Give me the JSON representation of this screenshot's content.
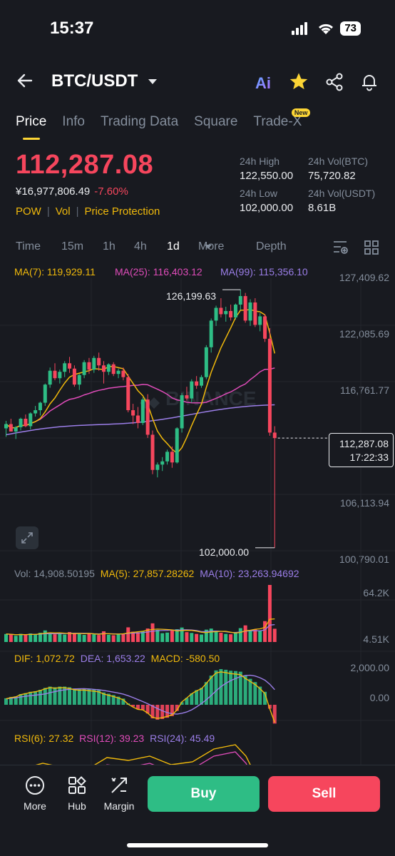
{
  "status_bar": {
    "time": "15:37",
    "battery": "73"
  },
  "header": {
    "pair": "BTC/USDT"
  },
  "tabs": [
    {
      "label": "Price",
      "active": true
    },
    {
      "label": "Info"
    },
    {
      "label": "Trading Data"
    },
    {
      "label": "Square"
    },
    {
      "label": "Trade-X",
      "badge": "New"
    }
  ],
  "price": {
    "last": "112,287.08",
    "fiat": "¥16,977,806.49",
    "change": "-7.60%",
    "tags": [
      "POW",
      "Vol",
      "Price Protection"
    ]
  },
  "stats": {
    "high_label": "24h High",
    "high": "122,550.00",
    "vol_btc_label": "24h Vol(BTC)",
    "vol_btc": "75,720.82",
    "low_label": "24h Low",
    "low": "102,000.00",
    "vol_usdt_label": "24h Vol(USDT)",
    "vol_usdt": "8.61B"
  },
  "intervals": [
    "Time",
    "15m",
    "1h",
    "4h",
    "1d",
    "More",
    "Depth"
  ],
  "ma_legend": {
    "ma7": "MA(7): 119,929.11",
    "ma25": "MA(25): 116,403.12",
    "ma99": "MA(99): 115,356.10"
  },
  "price_axis": [
    "127,409.62",
    "122,085.69",
    "116,761.77",
    "106,113.94",
    "100,790.01"
  ],
  "annotations": {
    "high": "126,199.63",
    "low": "102,000.00",
    "current_price": "112,287.08",
    "countdown": "17:22:33"
  },
  "watermark": "BINANCE",
  "vol_legend": {
    "vol": "Vol: 14,908.50195",
    "ma5": "MA(5): 27,857.28262",
    "ma10": "MA(10): 23,263.94692"
  },
  "vol_axis": [
    "64.2K",
    "4.51K"
  ],
  "macd_legend": {
    "dif": "DIF: 1,072.72",
    "dea": "DEA: 1,653.22",
    "macd": "MACD: -580.50"
  },
  "macd_axis": [
    "2,000.00",
    "0.00"
  ],
  "rsi_legend": {
    "rsi6": "RSI(6): 27.32",
    "rsi12": "RSI(12): 39.23",
    "rsi24": "RSI(24): 45.49"
  },
  "bottom_nav": {
    "more": "More",
    "hub": "Hub",
    "margin": "Margin",
    "buy": "Buy",
    "sell": "Sell"
  },
  "colors": {
    "up": "#2ebd85",
    "down": "#f6465d",
    "ma7": "#f0b90b",
    "ma25": "#e04cba",
    "ma99": "#9b7ee8",
    "accent": "#fcd535"
  },
  "chart_data": {
    "type": "candlestick",
    "candles": [
      [
        113200,
        113900,
        112400,
        113600
      ],
      [
        113600,
        114100,
        112900,
        112900
      ],
      [
        112900,
        113400,
        112200,
        113300
      ],
      [
        113300,
        114200,
        113000,
        114100
      ],
      [
        114100,
        114500,
        113300,
        113400
      ],
      [
        113400,
        114700,
        113100,
        114600
      ],
      [
        114600,
        115300,
        114300,
        114900
      ],
      [
        114900,
        115700,
        114400,
        115600
      ],
      [
        115600,
        117400,
        115300,
        117300
      ],
      [
        117300,
        118900,
        117000,
        118600
      ],
      [
        118600,
        119300,
        117700,
        117900
      ],
      [
        117900,
        118700,
        117400,
        118500
      ],
      [
        118500,
        119500,
        118000,
        119300
      ],
      [
        119300,
        119900,
        118400,
        118800
      ],
      [
        118800,
        119100,
        117100,
        117300
      ],
      [
        117300,
        118300,
        116800,
        118200
      ],
      [
        118200,
        119600,
        117900,
        119400
      ],
      [
        119400,
        119800,
        118300,
        118700
      ],
      [
        118700,
        120000,
        118400,
        119800
      ],
      [
        119800,
        120300,
        118600,
        119100
      ],
      [
        119100,
        119500,
        117400,
        118500
      ],
      [
        118500,
        119300,
        118200,
        119200
      ],
      [
        119200,
        119400,
        118100,
        118300
      ],
      [
        118300,
        118800,
        117900,
        118600
      ],
      [
        118600,
        118900,
        117700,
        118000
      ],
      [
        118000,
        118300,
        114700,
        114900
      ],
      [
        114900,
        115500,
        113600,
        114400
      ],
      [
        114400,
        115200,
        113200,
        113700
      ],
      [
        113700,
        116100,
        113500,
        115900
      ],
      [
        115900,
        116400,
        112300,
        112600
      ],
      [
        112600,
        113000,
        108900,
        109300
      ],
      [
        109300,
        110000,
        108600,
        109800
      ],
      [
        109800,
        110500,
        109200,
        110100
      ],
      [
        110100,
        111200,
        109800,
        111000
      ],
      [
        111000,
        111500,
        109500,
        110000
      ],
      [
        110000,
        113300,
        109900,
        113200
      ],
      [
        113200,
        116500,
        112800,
        116300
      ],
      [
        116300,
        117100,
        115800,
        116000
      ],
      [
        116000,
        117800,
        115600,
        117600
      ],
      [
        117600,
        118100,
        116900,
        117200
      ],
      [
        117200,
        118200,
        117000,
        118000
      ],
      [
        118000,
        121000,
        117800,
        120800
      ],
      [
        120800,
        123500,
        120300,
        123300
      ],
      [
        123300,
        124700,
        122800,
        124500
      ],
      [
        124500,
        125400,
        123600,
        123900
      ],
      [
        123900,
        124600,
        123200,
        124200
      ],
      [
        124200,
        124800,
        123300,
        123600
      ],
      [
        123600,
        124900,
        123400,
        124800
      ],
      [
        124800,
        126199.63,
        124300,
        125600
      ],
      [
        125600,
        125900,
        123100,
        123300
      ],
      [
        123300,
        125300,
        122800,
        125000
      ],
      [
        125000,
        125400,
        122700,
        122900
      ],
      [
        122900,
        124000,
        122300,
        123700
      ],
      [
        123700,
        123900,
        121300,
        121600
      ],
      [
        121600,
        122600,
        112500,
        112800
      ],
      [
        112800,
        113400,
        102000,
        112287.08
      ]
    ],
    "volume": [
      9000,
      8500,
      7000,
      9200,
      8100,
      9600,
      8800,
      10400,
      13000,
      10200,
      8700,
      9300,
      8400,
      11200,
      10100,
      9000,
      8000,
      9800,
      8700,
      7900,
      12000,
      8200,
      7600,
      8900,
      9400,
      16500,
      11600,
      10800,
      12100,
      15200,
      21000,
      13600,
      9900,
      10600,
      13200,
      14400,
      16300,
      11100,
      10200,
      9100,
      8400,
      13900,
      15100,
      11800,
      10400,
      9100,
      8700,
      10500,
      15600,
      18700,
      12900,
      14200,
      13000,
      23500,
      64200,
      14908.5
    ],
    "macd_hist": [
      200,
      240,
      260,
      330,
      360,
      400,
      420,
      460,
      520,
      560,
      540,
      560,
      560,
      540,
      500,
      490,
      500,
      480,
      470,
      450,
      380,
      340,
      300,
      250,
      190,
      40,
      -60,
      -140,
      -160,
      -270,
      -420,
      -460,
      -440,
      -400,
      -350,
      -190,
      80,
      210,
      350,
      450,
      520,
      700,
      900,
      1060,
      1100,
      1080,
      1050,
      1040,
      1020,
      900,
      800,
      700,
      560,
      400,
      -120,
      -580.5
    ],
    "ma7_last": 119929.11,
    "ma25_last": 116403.12,
    "ma99_last": 115356.1,
    "y_range": [
      100790.01,
      127409.62
    ]
  }
}
